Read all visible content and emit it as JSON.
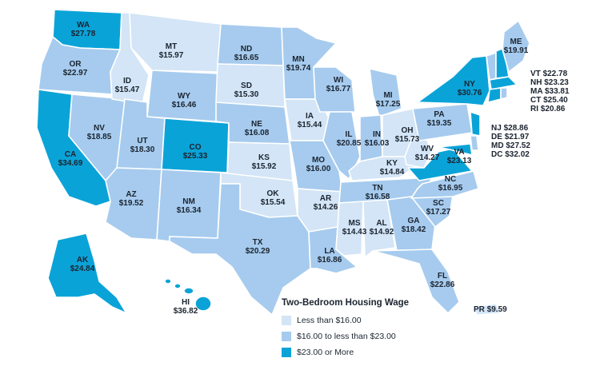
{
  "header_fragment": "",
  "colors": {
    "low": "#d3e5f6",
    "mid": "#a6cbee",
    "high": "#0aa3d8",
    "text": "#1b2430"
  },
  "legend": {
    "title": "Two-Bedroom Housing Wage",
    "items": [
      {
        "label": "Less than $16.00",
        "color": "#d3e5f6"
      },
      {
        "label": "$16.00 to less than $23.00",
        "color": "#a6cbee"
      },
      {
        "label": "$23.00 or More",
        "color": "#0aa3d8"
      }
    ]
  },
  "states": {
    "WA": {
      "abbr": "WA",
      "wage": "$27.78",
      "tier": "high"
    },
    "OR": {
      "abbr": "OR",
      "wage": "$22.97",
      "tier": "mid"
    },
    "CA": {
      "abbr": "CA",
      "wage": "$34.69",
      "tier": "high"
    },
    "ID": {
      "abbr": "ID",
      "wage": "$15.47",
      "tier": "low"
    },
    "NV": {
      "abbr": "NV",
      "wage": "$18.85",
      "tier": "mid"
    },
    "MT": {
      "abbr": "MT",
      "wage": "$15.97",
      "tier": "low"
    },
    "WY": {
      "abbr": "WY",
      "wage": "$16.46",
      "tier": "mid"
    },
    "UT": {
      "abbr": "UT",
      "wage": "$18.30",
      "tier": "mid"
    },
    "AZ": {
      "abbr": "AZ",
      "wage": "$19.52",
      "tier": "mid"
    },
    "CO": {
      "abbr": "CO",
      "wage": "$25.33",
      "tier": "high"
    },
    "NM": {
      "abbr": "NM",
      "wage": "$16.34",
      "tier": "mid"
    },
    "ND": {
      "abbr": "ND",
      "wage": "$16.65",
      "tier": "mid"
    },
    "SD": {
      "abbr": "SD",
      "wage": "$15.30",
      "tier": "low"
    },
    "NE": {
      "abbr": "NE",
      "wage": "$16.08",
      "tier": "mid"
    },
    "KS": {
      "abbr": "KS",
      "wage": "$15.92",
      "tier": "low"
    },
    "OK": {
      "abbr": "OK",
      "wage": "$15.54",
      "tier": "low"
    },
    "TX": {
      "abbr": "TX",
      "wage": "$20.29",
      "tier": "mid"
    },
    "MN": {
      "abbr": "MN",
      "wage": "$19.74",
      "tier": "mid"
    },
    "IA": {
      "abbr": "IA",
      "wage": "$15.44",
      "tier": "low"
    },
    "MO": {
      "abbr": "MO",
      "wage": "$16.00",
      "tier": "mid"
    },
    "AR": {
      "abbr": "AR",
      "wage": "$14.26",
      "tier": "low"
    },
    "LA": {
      "abbr": "LA",
      "wage": "$16.86",
      "tier": "mid"
    },
    "WI": {
      "abbr": "WI",
      "wage": "$16.77",
      "tier": "mid"
    },
    "IL": {
      "abbr": "IL",
      "wage": "$20.85",
      "tier": "mid"
    },
    "MI": {
      "abbr": "MI",
      "wage": "$17.25",
      "tier": "mid"
    },
    "IN": {
      "abbr": "IN",
      "wage": "$16.03",
      "tier": "mid"
    },
    "OH": {
      "abbr": "OH",
      "wage": "$15.73",
      "tier": "low"
    },
    "KY": {
      "abbr": "KY",
      "wage": "$14.84",
      "tier": "low"
    },
    "TN": {
      "abbr": "TN",
      "wage": "$16.58",
      "tier": "mid"
    },
    "MS": {
      "abbr": "MS",
      "wage": "$14.43",
      "tier": "low"
    },
    "AL": {
      "abbr": "AL",
      "wage": "$14.92",
      "tier": "low"
    },
    "GA": {
      "abbr": "GA",
      "wage": "$18.42",
      "tier": "mid"
    },
    "FL": {
      "abbr": "FL",
      "wage": "$22.86",
      "tier": "mid"
    },
    "SC": {
      "abbr": "SC",
      "wage": "$17.27",
      "tier": "mid"
    },
    "NC": {
      "abbr": "NC",
      "wage": "$16.95",
      "tier": "mid"
    },
    "VA": {
      "abbr": "VA",
      "wage": "$23.13",
      "tier": "high"
    },
    "WV": {
      "abbr": "WV",
      "wage": "$14.27",
      "tier": "low"
    },
    "PA": {
      "abbr": "PA",
      "wage": "$19.35",
      "tier": "mid"
    },
    "NY": {
      "abbr": "NY",
      "wage": "$30.76",
      "tier": "high"
    },
    "ME": {
      "abbr": "ME",
      "wage": "$19.91",
      "tier": "mid"
    },
    "AK": {
      "abbr": "AK",
      "wage": "$24.84",
      "tier": "high"
    },
    "HI": {
      "abbr": "HI",
      "wage": "$36.82",
      "tier": "high"
    },
    "PR": {
      "abbr": "PR",
      "wage": "$9.59",
      "tier": "low"
    },
    "VT": {
      "abbr": "VT",
      "wage": "$22.78",
      "tier": "mid"
    },
    "NH": {
      "abbr": "NH",
      "wage": "$23.23",
      "tier": "high"
    },
    "MA": {
      "abbr": "MA",
      "wage": "$33.81",
      "tier": "high"
    },
    "CT": {
      "abbr": "CT",
      "wage": "$25.40",
      "tier": "high"
    },
    "RI": {
      "abbr": "RI",
      "wage": "$20.86",
      "tier": "mid"
    },
    "NJ": {
      "abbr": "NJ",
      "wage": "$28.86",
      "tier": "high"
    },
    "DE": {
      "abbr": "DE",
      "wage": "$21.97",
      "tier": "mid"
    },
    "MD": {
      "abbr": "MD",
      "wage": "$27.52",
      "tier": "high"
    },
    "DC": {
      "abbr": "DC",
      "wage": "$32.02",
      "tier": "high"
    }
  }
}
